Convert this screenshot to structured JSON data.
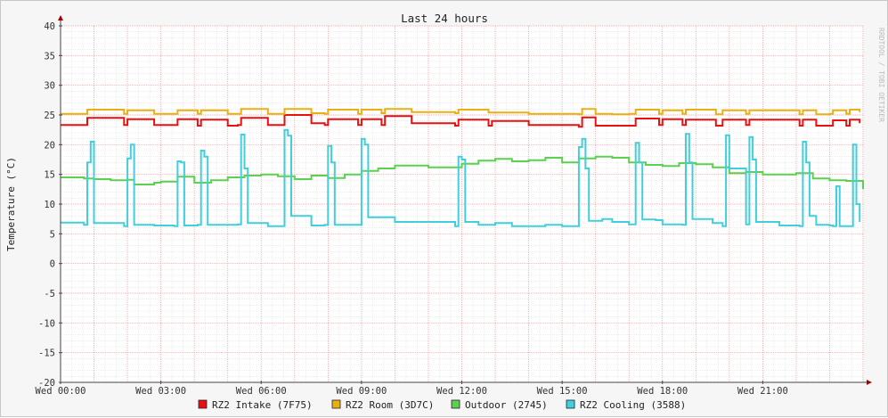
{
  "chart_data": {
    "type": "line",
    "title": "Last 24 hours",
    "ylabel": "Temperature (°C)",
    "xlabel": "",
    "watermark": "RRDTOOL / TOBI OETIKER",
    "ylim": [
      -20,
      40
    ],
    "yticks": [
      40,
      35,
      30,
      25,
      20,
      15,
      10,
      5,
      0,
      -5,
      -10,
      -15,
      -20
    ],
    "x_range_hours": [
      0,
      24
    ],
    "xticks": [
      {
        "hour": 0,
        "label": "Wed 00:00"
      },
      {
        "hour": 3,
        "label": "Wed 03:00"
      },
      {
        "hour": 6,
        "label": "Wed 06:00"
      },
      {
        "hour": 9,
        "label": "Wed 09:00"
      },
      {
        "hour": 12,
        "label": "Wed 12:00"
      },
      {
        "hour": 15,
        "label": "Wed 15:00"
      },
      {
        "hour": 18,
        "label": "Wed 18:00"
      },
      {
        "hour": 21,
        "label": "Wed 21:00"
      }
    ],
    "grid": true,
    "legend_position": "bottom",
    "series": [
      {
        "name": "RZ2 Intake (7F75)",
        "color": "#e81010",
        "x": [
          0,
          0.7,
          0.8,
          1.9,
          2,
          2.8,
          3.4,
          3.5,
          4.1,
          4.2,
          5,
          5.3,
          5.4,
          6.2,
          6.6,
          6.7,
          7.5,
          7.9,
          8,
          8.9,
          9,
          9.6,
          9.7,
          10.5,
          11.8,
          11.9,
          12.8,
          12.9,
          14,
          15.5,
          15.6,
          16,
          16.5,
          17,
          17.2,
          17.9,
          18,
          18.6,
          18.7,
          19.6,
          19.8,
          20.5,
          20.6,
          22.1,
          22.2,
          22.6,
          23,
          23.1,
          23.5,
          23.6,
          23.9
        ],
        "y": [
          23.3,
          23.3,
          24.5,
          23.3,
          24.3,
          23.3,
          23.3,
          24.3,
          23.2,
          24.2,
          23.2,
          23.3,
          24.5,
          23.3,
          23.3,
          25.0,
          23.6,
          23.3,
          24.3,
          23.3,
          24.3,
          23.3,
          24.8,
          23.6,
          23.2,
          24.2,
          23.2,
          24.0,
          23.3,
          23.0,
          24.6,
          23.2,
          23.2,
          23.2,
          24.4,
          23.3,
          24.3,
          23.3,
          24.2,
          23.2,
          24.2,
          23.3,
          24.2,
          23.2,
          24.2,
          23.2,
          23.2,
          24.1,
          23.2,
          24.2,
          23.6
        ]
      },
      {
        "name": "RZ2 Room (3D7C)",
        "color": "#e8b010",
        "x": [
          0,
          0.7,
          0.8,
          1.9,
          2,
          2.8,
          3.4,
          3.5,
          4.1,
          4.2,
          5,
          5.3,
          5.4,
          6.2,
          6.6,
          6.7,
          7.5,
          7.9,
          8,
          8.9,
          9,
          9.6,
          9.7,
          10.5,
          11.8,
          11.9,
          12.2,
          12.8,
          14,
          15.5,
          15.6,
          16,
          16.5,
          17,
          17.2,
          17.9,
          18,
          18.6,
          18.7,
          19.6,
          19.8,
          20.5,
          20.6,
          22.1,
          22.2,
          22.6,
          23,
          23.1,
          23.5,
          23.6,
          23.9
        ],
        "y": [
          25.2,
          25.2,
          25.9,
          25.2,
          25.8,
          25.2,
          25.2,
          25.8,
          25.2,
          25.8,
          25.2,
          25.2,
          26.0,
          25.2,
          25.2,
          26.0,
          25.3,
          25.2,
          25.9,
          25.2,
          25.9,
          25.3,
          26.0,
          25.5,
          25.3,
          25.9,
          25.9,
          25.4,
          25.2,
          25.1,
          26.0,
          25.2,
          25.1,
          25.2,
          25.9,
          25.2,
          25.8,
          25.2,
          25.9,
          25.1,
          25.8,
          25.2,
          25.8,
          25.1,
          25.8,
          25.1,
          25.2,
          25.8,
          25.2,
          25.9,
          25.5
        ]
      },
      {
        "name": "Outdoor (2745)",
        "color": "#5ad14f",
        "x": [
          0,
          0.7,
          1,
          1.5,
          2,
          2.2,
          2.8,
          3,
          3.5,
          4,
          4.5,
          5,
          5.5,
          6,
          6.5,
          7,
          7.5,
          8,
          8.5,
          9,
          9.5,
          10,
          11,
          12,
          12.5,
          13,
          13.5,
          14,
          14.5,
          15,
          15.5,
          16,
          16.5,
          17,
          17.5,
          18,
          18.5,
          19,
          19.5,
          20,
          20.5,
          21,
          21.5,
          22,
          22.5,
          23,
          23.5,
          24
        ],
        "y": [
          14.5,
          14.3,
          14.2,
          14.0,
          14.1,
          13.3,
          13.6,
          13.8,
          14.6,
          13.6,
          14.0,
          14.5,
          14.8,
          15.0,
          14.7,
          14.2,
          14.8,
          14.4,
          15.0,
          15.6,
          16.0,
          16.5,
          16.2,
          16.8,
          17.3,
          17.6,
          17.2,
          17.4,
          17.8,
          17.0,
          17.7,
          18.0,
          17.8,
          17.0,
          16.6,
          16.4,
          16.9,
          16.7,
          16.2,
          15.2,
          15.4,
          15.0,
          15.0,
          15.2,
          14.3,
          14.0,
          13.9,
          12.5
        ]
      },
      {
        "name": "RZ2 Cooling (3588)",
        "color": "#41cfdc",
        "x": [
          0,
          0.7,
          0.8,
          0.9,
          1,
          1.9,
          2,
          2.1,
          2.2,
          2.8,
          3.4,
          3.5,
          3.6,
          3.7,
          4.1,
          4.2,
          4.3,
          4.4,
          5,
          5.3,
          5.4,
          5.5,
          5.6,
          6.2,
          6.6,
          6.7,
          6.8,
          6.9,
          7.5,
          7.9,
          8,
          8.1,
          8.2,
          8.9,
          9,
          9.1,
          9.2,
          10,
          11.8,
          11.9,
          12,
          12.1,
          12.5,
          13,
          13.5,
          14,
          14.5,
          15,
          15.5,
          15.6,
          15.7,
          15.8,
          16.2,
          16.5,
          17,
          17.2,
          17.3,
          17.4,
          17.8,
          18,
          18.6,
          18.7,
          18.8,
          18.9,
          19.5,
          19.8,
          19.9,
          20,
          20.5,
          20.6,
          20.7,
          20.8,
          21.5,
          22.1,
          22.2,
          22.3,
          22.4,
          22.6,
          23,
          23.1,
          23.2,
          23.3,
          23.6,
          23.7,
          23.8,
          23.9
        ],
        "y": [
          6.9,
          6.5,
          17.0,
          20.5,
          6.8,
          6.3,
          17.7,
          20.0,
          6.5,
          6.4,
          6.3,
          17.2,
          17.0,
          6.4,
          6.5,
          19.0,
          18.0,
          6.5,
          6.5,
          6.6,
          21.7,
          16.0,
          6.8,
          6.3,
          6.3,
          22.5,
          21.5,
          8.0,
          6.4,
          6.5,
          19.8,
          17.0,
          6.5,
          6.5,
          21.0,
          20.0,
          7.8,
          7.0,
          6.3,
          18.0,
          17.5,
          7.0,
          6.5,
          6.8,
          6.3,
          6.3,
          6.5,
          6.3,
          19.6,
          21.0,
          16.0,
          7.2,
          7.5,
          7.0,
          6.6,
          20.3,
          17.0,
          7.4,
          7.3,
          6.6,
          6.5,
          21.8,
          17.0,
          7.5,
          6.8,
          6.3,
          21.6,
          16.0,
          6.6,
          21.3,
          17.5,
          7.0,
          6.4,
          6.3,
          20.5,
          17.0,
          8.0,
          6.5,
          6.4,
          6.3,
          13.0,
          6.3,
          6.3,
          20.0,
          10.0,
          7.0
        ]
      }
    ]
  }
}
